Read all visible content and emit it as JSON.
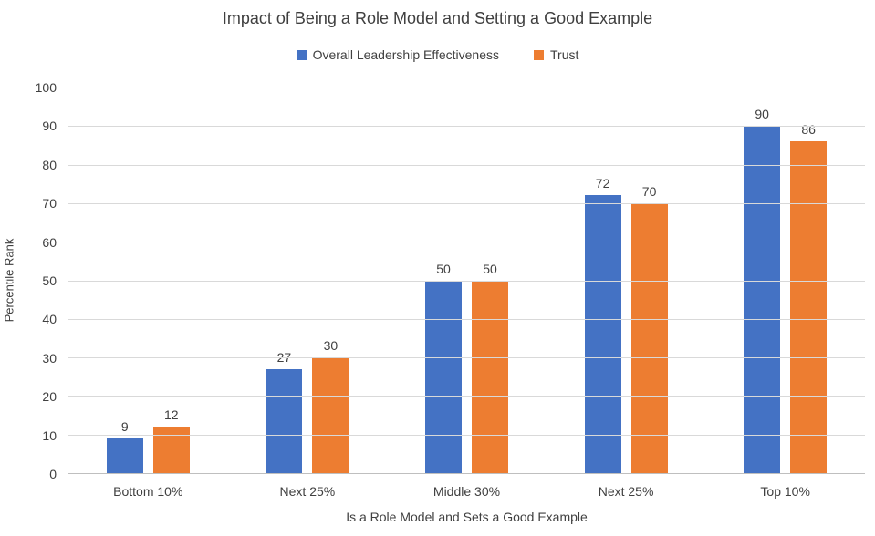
{
  "chart_data": {
    "type": "bar",
    "title": "Impact of Being a Role Model and Setting a Good Example",
    "categories": [
      "Bottom 10%",
      "Next 25%",
      "Middle 30%",
      "Next 25%",
      "Top 10%"
    ],
    "series": [
      {
        "name": "Overall Leadership Effectiveness",
        "color": "#4472C4",
        "values": [
          9,
          27,
          50,
          72,
          90
        ]
      },
      {
        "name": "Trust",
        "color": "#ED7D31",
        "values": [
          12,
          30,
          50,
          70,
          86
        ]
      }
    ],
    "xlabel": "Is a Role Model and Sets a Good Example",
    "ylabel": "Percentile Rank",
    "ylim": [
      0,
      100
    ],
    "ytick_step": 10,
    "yticks": [
      0,
      10,
      20,
      30,
      40,
      50,
      60,
      70,
      80,
      90,
      100
    ],
    "grid": true,
    "legend_position": "top",
    "data_labels": true
  },
  "colors": {
    "blue_series": "#4472C4",
    "orange_series": "#ED7D31",
    "text": "#404040",
    "gridline": "#D9D9D9",
    "axis_line": "#BFBFBF",
    "background": "#FFFFFF"
  }
}
